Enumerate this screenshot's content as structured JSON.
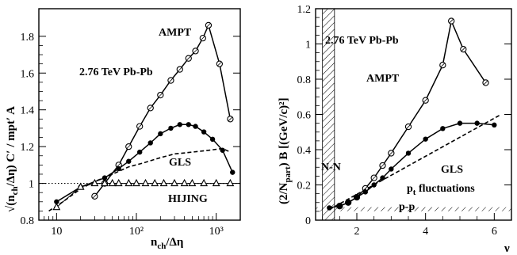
{
  "chart_data": [
    {
      "type": "line",
      "x_scale": "log",
      "xlabel_main": "n",
      "xlabel_sub": "ch",
      "xlabel_rest": "/Δη",
      "ylabel_main": "√(n",
      "ylabel_sub": "ch",
      "ylabel_rest": "/Δη) C′ / mpt′ A",
      "xlim": [
        6,
        2000
      ],
      "ylim": [
        0.8,
        1.95
      ],
      "x_ticks": [
        {
          "value": 10,
          "label": "10"
        },
        {
          "value": 100,
          "label": "10²"
        },
        {
          "value": 1000,
          "label": "10³"
        }
      ],
      "y_ticks": [
        0.8,
        1,
        1.2,
        1.4,
        1.6,
        1.8
      ],
      "y_tick_labels": [
        "0.8",
        "1",
        "1.2",
        "1.4",
        "1.6",
        "1.8"
      ],
      "annotations": {
        "system": "2.76 TeV Pb-Pb",
        "ampt": "AMPT",
        "gls": "GLS",
        "hijing": "HIJING"
      },
      "series": [
        {
          "name": "AMPT",
          "marker": "open-circle",
          "x": [
            30,
            40,
            60,
            80,
            110,
            150,
            200,
            270,
            350,
            450,
            550,
            680,
            800,
            1100,
            1500
          ],
          "y": [
            0.93,
            1.0,
            1.1,
            1.2,
            1.31,
            1.41,
            1.48,
            1.56,
            1.62,
            1.68,
            1.72,
            1.79,
            1.86,
            1.65,
            1.35
          ]
        },
        {
          "name": "",
          "marker": "filled-circle",
          "x": [
            10,
            20,
            40,
            60,
            80,
            110,
            150,
            200,
            270,
            350,
            450,
            550,
            700,
            900,
            1200,
            1600
          ],
          "y": [
            0.9,
            0.98,
            1.03,
            1.08,
            1.12,
            1.17,
            1.22,
            1.27,
            1.3,
            1.32,
            1.32,
            1.31,
            1.28,
            1.24,
            1.18,
            1.06
          ]
        },
        {
          "name": "GLS",
          "style": "dashed",
          "x": [
            8,
            12,
            20,
            30,
            50,
            80,
            120,
            200,
            300,
            500,
            800,
            1200,
            1500
          ],
          "y": [
            0.85,
            0.9,
            0.97,
            1.01,
            1.05,
            1.09,
            1.11,
            1.14,
            1.16,
            1.17,
            1.18,
            1.19,
            1.17
          ]
        },
        {
          "name": "HIJING",
          "marker": "open-triangle",
          "x": [
            10,
            20,
            30,
            40,
            50,
            60,
            80,
            100,
            130,
            170,
            220,
            300,
            400,
            500,
            700,
            1000,
            1500
          ],
          "y": [
            0.87,
            0.98,
            1.0,
            1.0,
            1.0,
            1.0,
            1.0,
            1.0,
            1.0,
            1.0,
            1.0,
            1.0,
            1.0,
            1.0,
            1.0,
            1.0,
            1.0
          ]
        }
      ],
      "reference_line": {
        "y": 1,
        "style": "dotted"
      }
    },
    {
      "type": "line",
      "xlabel": "ν",
      "ylabel_main": "(2/N",
      "ylabel_sub": "part",
      "ylabel_rest": ") B [(GeV/c)²]",
      "xlim": [
        0.8,
        6.5
      ],
      "ylim": [
        0,
        1.2
      ],
      "x_ticks": [
        2,
        4,
        6
      ],
      "x_tick_labels": [
        "2",
        "4",
        "6"
      ],
      "y_ticks": [
        0,
        0.2,
        0.4,
        0.6,
        0.8,
        1,
        1.2
      ],
      "y_tick_labels": [
        "0",
        "0.2",
        "0.4",
        "0.6",
        "0.8",
        "1",
        "1.2"
      ],
      "annotations": {
        "system": "2.76 TeV Pb-Pb",
        "ampt": "AMPT",
        "gls": "GLS",
        "nn": "N-N",
        "pt_main": "p",
        "pt_sub": "t",
        "pt_rest": " fluctuations",
        "pp": "p-p"
      },
      "series": [
        {
          "name": "AMPT",
          "marker": "open-circle",
          "x": [
            1.5,
            1.75,
            2.0,
            2.25,
            2.5,
            2.75,
            3.0,
            3.5,
            4.0,
            4.5,
            4.75,
            5.1,
            5.75
          ],
          "y": [
            0.08,
            0.1,
            0.13,
            0.18,
            0.24,
            0.31,
            0.38,
            0.53,
            0.68,
            0.88,
            1.13,
            0.97,
            0.78
          ]
        },
        {
          "name": "",
          "marker": "filled-circle",
          "x": [
            1.2,
            1.5,
            1.75,
            2.0,
            2.25,
            2.5,
            2.75,
            3.0,
            3.5,
            4.0,
            4.5,
            5.0,
            5.5,
            6.0
          ],
          "y": [
            0.07,
            0.08,
            0.1,
            0.13,
            0.16,
            0.2,
            0.24,
            0.29,
            0.38,
            0.46,
            0.52,
            0.55,
            0.55,
            0.54
          ]
        },
        {
          "name": "p_t fluctuations",
          "style": "dashed",
          "x": [
            1.2,
            6.2
          ],
          "y": [
            0.06,
            0.6
          ]
        }
      ],
      "reference_line": {
        "y": 0.06,
        "style": "dotted-band",
        "label": "p-p"
      },
      "hatched_band": {
        "x": [
          1.0,
          1.35
        ],
        "label": "N-N"
      }
    }
  ]
}
